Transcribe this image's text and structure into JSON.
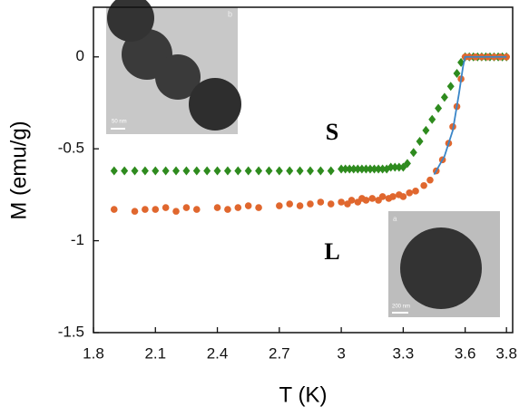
{
  "chart_data": {
    "type": "scatter",
    "xlabel": "T (K)",
    "ylabel": "M (emu/g)",
    "xlim": [
      1.8,
      3.83
    ],
    "ylim": [
      -1.5,
      0.27
    ],
    "xticks": [
      1.8,
      2.1,
      2.4,
      2.7,
      3,
      3.3,
      3.6,
      3.8
    ],
    "yticks": [
      0,
      -0.5,
      -1,
      -1.5
    ],
    "series": [
      {
        "marker": "diamond",
        "color": "#2e8b1e",
        "x": [
          1.9,
          1.95,
          2.0,
          2.05,
          2.1,
          2.15,
          2.2,
          2.25,
          2.3,
          2.35,
          2.4,
          2.45,
          2.5,
          2.55,
          2.6,
          2.65,
          2.7,
          2.75,
          2.8,
          2.85,
          2.9,
          2.95,
          3.0,
          3.02,
          3.04,
          3.06,
          3.08,
          3.1,
          3.12,
          3.14,
          3.16,
          3.18,
          3.2,
          3.22,
          3.24,
          3.26,
          3.28,
          3.3,
          3.32,
          3.35,
          3.38,
          3.41,
          3.44,
          3.47,
          3.5,
          3.53,
          3.56,
          3.58,
          3.6,
          3.62,
          3.64,
          3.66,
          3.68,
          3.7,
          3.72,
          3.74,
          3.76,
          3.78,
          3.8
        ],
        "values": [
          -0.62,
          -0.62,
          -0.62,
          -0.62,
          -0.62,
          -0.62,
          -0.62,
          -0.62,
          -0.62,
          -0.62,
          -0.62,
          -0.62,
          -0.62,
          -0.62,
          -0.62,
          -0.62,
          -0.62,
          -0.62,
          -0.62,
          -0.62,
          -0.62,
          -0.62,
          -0.61,
          -0.61,
          -0.61,
          -0.61,
          -0.61,
          -0.61,
          -0.61,
          -0.61,
          -0.61,
          -0.61,
          -0.61,
          -0.61,
          -0.6,
          -0.6,
          -0.6,
          -0.6,
          -0.58,
          -0.52,
          -0.46,
          -0.4,
          -0.34,
          -0.28,
          -0.22,
          -0.16,
          -0.09,
          -0.03,
          0,
          0,
          0,
          0,
          0,
          0,
          0,
          0,
          0,
          0,
          0
        ]
      },
      {
        "marker": "circle",
        "color": "#e0672e",
        "x": [
          1.9,
          2.0,
          2.05,
          2.1,
          2.15,
          2.2,
          2.25,
          2.3,
          2.4,
          2.45,
          2.5,
          2.55,
          2.6,
          2.7,
          2.75,
          2.8,
          2.85,
          2.9,
          2.95,
          3.0,
          3.03,
          3.05,
          3.08,
          3.1,
          3.12,
          3.15,
          3.18,
          3.2,
          3.23,
          3.25,
          3.28,
          3.3,
          3.33,
          3.36,
          3.4,
          3.43,
          3.46,
          3.49,
          3.52,
          3.54,
          3.56,
          3.58,
          3.6,
          3.62,
          3.65,
          3.68,
          3.71,
          3.74,
          3.77,
          3.8
        ],
        "values": [
          -0.83,
          -0.84,
          -0.83,
          -0.83,
          -0.82,
          -0.84,
          -0.82,
          -0.83,
          -0.82,
          -0.83,
          -0.82,
          -0.81,
          -0.82,
          -0.81,
          -0.8,
          -0.81,
          -0.8,
          -0.79,
          -0.8,
          -0.79,
          -0.8,
          -0.78,
          -0.79,
          -0.77,
          -0.78,
          -0.77,
          -0.78,
          -0.76,
          -0.77,
          -0.76,
          -0.75,
          -0.76,
          -0.74,
          -0.73,
          -0.7,
          -0.67,
          -0.62,
          -0.56,
          -0.47,
          -0.38,
          -0.27,
          -0.12,
          0,
          0,
          0,
          0,
          0,
          0,
          0,
          0
        ]
      },
      {
        "marker": "line",
        "color": "#3a86c8",
        "x": [
          3.45,
          3.5,
          3.54,
          3.57,
          3.59,
          3.6,
          3.8
        ],
        "values": [
          -0.64,
          -0.54,
          -0.4,
          -0.2,
          -0.05,
          0,
          0
        ]
      }
    ],
    "annotations": [
      "S",
      "L"
    ],
    "inset_labels": [
      "b",
      "50 nm",
      "a",
      "200 nm"
    ]
  }
}
